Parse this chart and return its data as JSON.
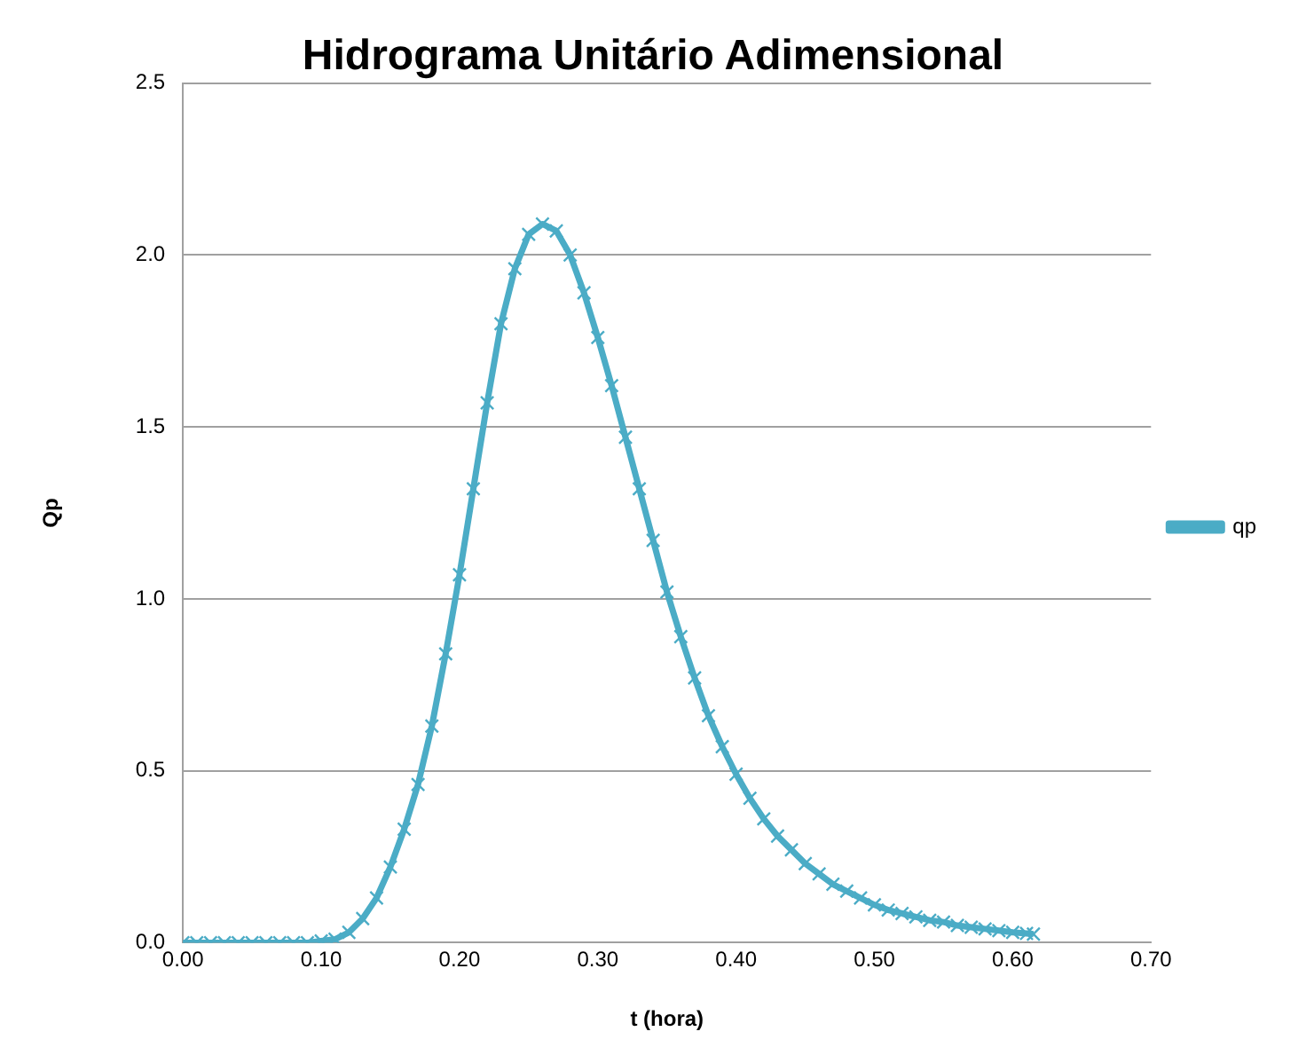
{
  "chart_data": {
    "type": "line",
    "title": "Hidrograma Unitário Adimensional",
    "xlabel": "t (hora)",
    "ylabel": "Qp",
    "x": [
      0,
      0.01,
      0.02,
      0.03,
      0.04,
      0.05,
      0.06,
      0.07,
      0.08,
      0.09,
      0.1,
      0.11,
      0.12,
      0.13,
      0.14,
      0.15,
      0.16,
      0.17,
      0.18,
      0.19,
      0.2,
      0.21,
      0.22,
      0.23,
      0.24,
      0.25,
      0.26,
      0.27,
      0.28,
      0.29,
      0.3,
      0.31,
      0.32,
      0.33,
      0.34,
      0.35,
      0.36,
      0.37,
      0.38,
      0.39,
      0.4,
      0.41,
      0.42,
      0.43,
      0.44,
      0.45,
      0.46,
      0.47,
      0.48,
      0.49,
      0.5,
      0.51,
      0.52,
      0.53,
      0.54,
      0.55,
      0.56,
      0.57,
      0.58,
      0.59,
      0.6,
      0.61,
      0.615
    ],
    "series": [
      {
        "name": "qp",
        "color": "#4bacc6",
        "values": [
          0,
          0,
          0,
          0,
          0,
          0,
          0,
          0,
          0,
          0,
          0.005,
          0.01,
          0.03,
          0.07,
          0.13,
          0.22,
          0.33,
          0.46,
          0.63,
          0.84,
          1.07,
          1.32,
          1.57,
          1.8,
          1.96,
          2.06,
          2.09,
          2.07,
          2.0,
          1.89,
          1.76,
          1.62,
          1.47,
          1.32,
          1.17,
          1.02,
          0.89,
          0.77,
          0.66,
          0.57,
          0.49,
          0.42,
          0.36,
          0.31,
          0.27,
          0.23,
          0.2,
          0.17,
          0.15,
          0.13,
          0.11,
          0.095,
          0.085,
          0.075,
          0.065,
          0.06,
          0.05,
          0.045,
          0.04,
          0.035,
          0.03,
          0.027,
          0.025
        ]
      }
    ],
    "xlim": [
      0,
      0.7
    ],
    "xticks": [
      {
        "value": 0,
        "label": "0.00"
      },
      {
        "value": 0.1,
        "label": "0.10"
      },
      {
        "value": 0.2,
        "label": "0.20"
      },
      {
        "value": 0.3,
        "label": "0.30"
      },
      {
        "value": 0.4,
        "label": "0.40"
      },
      {
        "value": 0.5,
        "label": "0.50"
      },
      {
        "value": 0.6,
        "label": "0.60"
      },
      {
        "value": 0.7,
        "label": "0.70"
      }
    ],
    "ylim": [
      0,
      2.5
    ],
    "yticks": [
      {
        "value": 0,
        "label": "0.0"
      },
      {
        "value": 0.5,
        "label": "0.5"
      },
      {
        "value": 1,
        "label": "1.0"
      },
      {
        "value": 1.5,
        "label": "1.5"
      },
      {
        "value": 2,
        "label": "2.0"
      },
      {
        "value": 2.5,
        "label": "2.5"
      }
    ],
    "grid": "y",
    "legend": "right",
    "marker": "cross",
    "line_style": "solid"
  }
}
